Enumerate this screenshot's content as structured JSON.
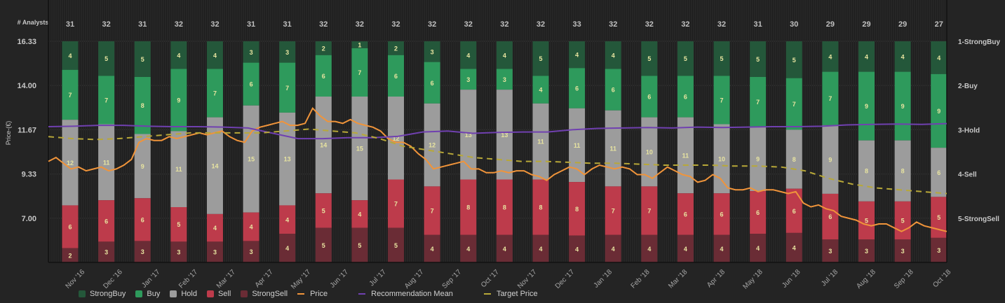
{
  "chart_data": {
    "type": "bar",
    "stacked": true,
    "title": "",
    "analysts_label": "# Analysts",
    "ylabel": "Price-(€)",
    "ylim": [
      4.67,
      16.33
    ],
    "y_ticks": [
      "16.33",
      "14.00",
      "11.67",
      "9.33",
      "7.00"
    ],
    "y_tick_values": [
      16.33,
      14.0,
      11.67,
      9.33,
      7.0
    ],
    "right_axis_labels": [
      "1-StrongBuy",
      "2-Buy",
      "3-Hold",
      "4-Sell",
      "5-StrongSell"
    ],
    "x_tick_labels": [
      "Nov '16",
      "Dec '16",
      "Jan '17",
      "Feb '17",
      "Mar '17",
      "Apr '17",
      "May '17",
      "Jun '17",
      "Jul '17",
      "Aug '17",
      "Sep '17",
      "Oct '17",
      "Nov '17",
      "Dec '17",
      "Jan '18",
      "Feb '18",
      "Mar '18",
      "Apr '18",
      "May '18",
      "Jun '18",
      "Jul '18",
      "Aug '18",
      "Sep '18",
      "Oct '18"
    ],
    "analysts": [
      31,
      32,
      31,
      32,
      32,
      31,
      31,
      32,
      32,
      32,
      32,
      32,
      32,
      32,
      33,
      32,
      32,
      32,
      32,
      31,
      30,
      29,
      29,
      29,
      27
    ],
    "series": [
      {
        "name": "StrongBuy",
        "color": "#24573a",
        "values": [
          4,
          5,
          5,
          4,
          4,
          3,
          3,
          2,
          1,
          2,
          3,
          4,
          4,
          5,
          4,
          4,
          5,
          5,
          5,
          5,
          5,
          4,
          4,
          4,
          4
        ]
      },
      {
        "name": "Buy",
        "color": "#2e9a5c",
        "values": [
          7,
          7,
          8,
          9,
          7,
          6,
          7,
          6,
          7,
          6,
          6,
          3,
          3,
          4,
          6,
          6,
          6,
          6,
          7,
          7,
          7,
          7,
          9,
          9,
          9
        ]
      },
      {
        "name": "Hold",
        "color": "#9c9c9c",
        "values": [
          12,
          11,
          9,
          11,
          14,
          15,
          13,
          14,
          15,
          12,
          12,
          13,
          13,
          11,
          11,
          11,
          10,
          11,
          10,
          9,
          8,
          9,
          8,
          8,
          6
        ]
      },
      {
        "name": "Sell",
        "color": "#bd3b4b",
        "values": [
          6,
          6,
          6,
          5,
          4,
          4,
          4,
          5,
          4,
          7,
          7,
          8,
          8,
          8,
          8,
          7,
          7,
          6,
          6,
          6,
          6,
          6,
          5,
          5,
          5
        ]
      },
      {
        "name": "StrongSell",
        "color": "#6a2c35",
        "values": [
          2,
          3,
          3,
          3,
          3,
          3,
          4,
          5,
          5,
          5,
          4,
          4,
          4,
          4,
          4,
          4,
          4,
          4,
          4,
          4,
          4,
          3,
          3,
          3,
          3
        ]
      }
    ],
    "lines": [
      {
        "name": "Price",
        "color": "#f0943a",
        "style": "solid",
        "values": [
          10.0,
          10.2,
          9.9,
          9.6,
          9.7,
          9.5,
          9.6,
          9.7,
          9.5,
          9.6,
          9.8,
          10.1,
          11.0,
          11.2,
          11.1,
          11.1,
          11.3,
          11.2,
          11.3,
          11.4,
          11.5,
          11.4,
          11.5,
          11.6,
          11.3,
          11.1,
          11.0,
          11.6,
          11.8,
          11.9,
          12.0,
          12.1,
          11.9,
          11.9,
          12.0,
          12.8,
          12.4,
          12.1,
          12.1,
          12.0,
          12.2,
          12.0,
          11.9,
          11.8,
          11.6,
          11.2,
          11.0,
          11.0,
          10.8,
          10.4,
          10.1,
          9.6,
          9.7,
          9.8,
          9.9,
          10.0,
          9.6,
          9.6,
          9.4,
          9.4,
          9.5,
          9.4,
          9.5,
          9.5,
          9.3,
          9.2,
          9.0,
          9.3,
          9.5,
          9.7,
          9.6,
          9.3,
          9.6,
          9.8,
          9.7,
          9.6,
          9.7,
          9.6,
          9.3,
          9.3,
          9.1,
          9.4,
          9.7,
          9.5,
          9.3,
          9.2,
          8.9,
          9.0,
          9.3,
          9.1,
          8.6,
          8.5,
          8.5,
          8.6,
          8.4,
          8.5,
          8.5,
          8.4,
          8.3,
          8.4,
          7.8,
          7.6,
          7.7,
          7.5,
          7.4,
          7.1,
          7.0,
          6.9,
          6.7,
          6.6,
          6.7,
          6.7,
          6.5,
          6.3,
          6.5,
          6.8,
          6.6,
          6.5,
          6.4,
          6.3
        ]
      },
      {
        "name": "Recommendation Mean",
        "color": "#7040b0",
        "style": "solid",
        "values": [
          2.93,
          2.92,
          2.9,
          2.9,
          2.92,
          2.93,
          2.93,
          2.94,
          2.96,
          3.08,
          3.2,
          3.2,
          3.18,
          3.18,
          3.15,
          3.05,
          3.03,
          3.08,
          3.06,
          3.05,
          3.05,
          3.0,
          2.97,
          2.96,
          2.95,
          2.96,
          2.94,
          2.95,
          2.94,
          2.93,
          2.93,
          2.92,
          2.89,
          2.88,
          2.87,
          2.88,
          2.86
        ]
      },
      {
        "name": "Target Price",
        "color": "#b8a838",
        "style": "dashed",
        "values": [
          11.3,
          11.2,
          11.15,
          11.2,
          11.3,
          11.4,
          11.5,
          11.5,
          11.5,
          11.5,
          11.6,
          11.7,
          11.6,
          11.5,
          11.2,
          10.8,
          10.6,
          10.4,
          10.2,
          10.1,
          10.0,
          10.0,
          9.95,
          9.9,
          9.9,
          9.85,
          9.8,
          9.8,
          9.8,
          9.75,
          9.75,
          9.7,
          9.5,
          9.1,
          8.8,
          8.6,
          8.5,
          8.4,
          8.3
        ]
      }
    ],
    "grid": true,
    "legend_position": "bottom-left"
  },
  "legend": [
    {
      "label": "StrongBuy",
      "kind": "swatch",
      "color": "#24573a"
    },
    {
      "label": "Buy",
      "kind": "swatch",
      "color": "#2e9a5c"
    },
    {
      "label": "Hold",
      "kind": "swatch",
      "color": "#9c9c9c"
    },
    {
      "label": "Sell",
      "kind": "swatch",
      "color": "#bd3b4b"
    },
    {
      "label": "StrongSell",
      "kind": "swatch",
      "color": "#6a2c35"
    },
    {
      "label": "Price",
      "kind": "line",
      "color": "#f0943a"
    },
    {
      "label": "Recommendation Mean",
      "kind": "line",
      "color": "#7040b0"
    },
    {
      "label": "Target Price",
      "kind": "line",
      "color": "#b8a838"
    }
  ]
}
